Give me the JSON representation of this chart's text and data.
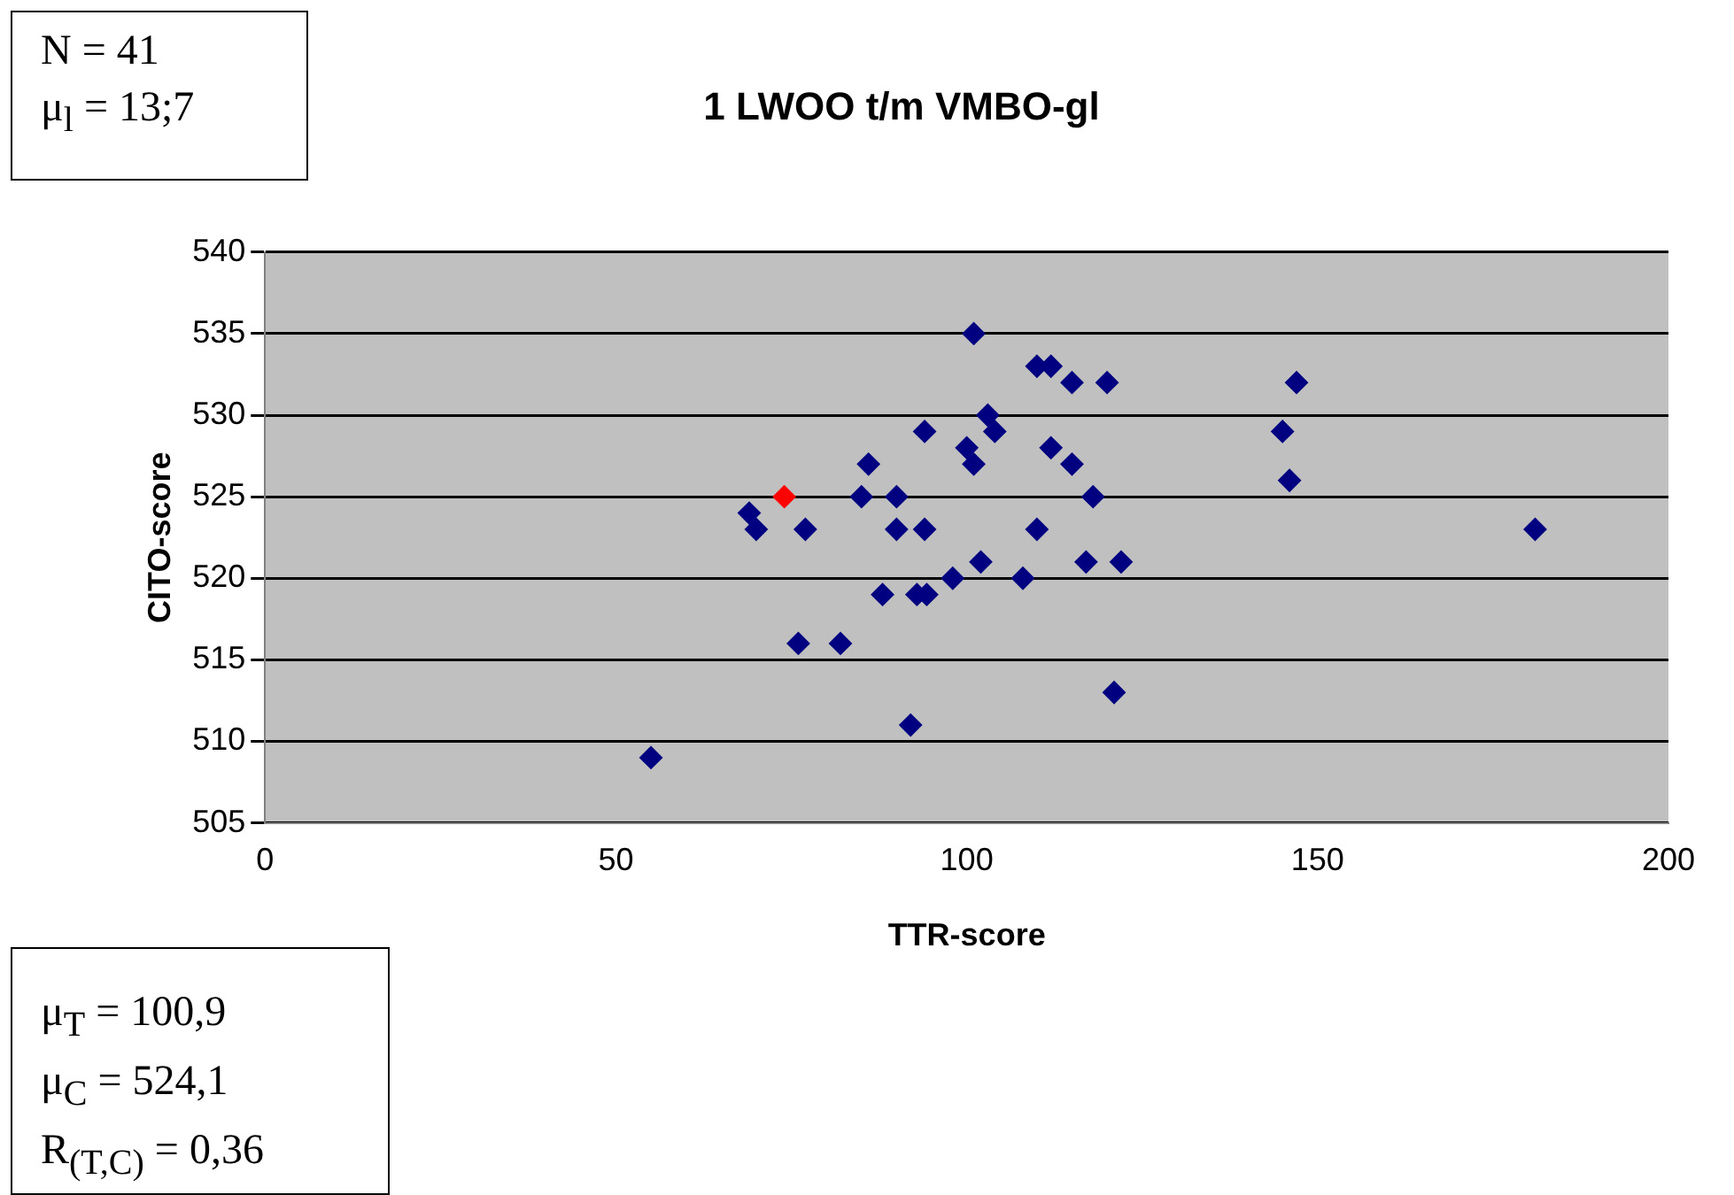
{
  "chart_data": {
    "type": "scatter",
    "title": "1 LWOO t/m VMBO-gl",
    "xlabel": "TTR-score",
    "ylabel": "CITO-score",
    "xlim": [
      0,
      200
    ],
    "xticks": [
      0,
      50,
      100,
      150,
      200
    ],
    "ylim": [
      505,
      540
    ],
    "yticks": [
      505,
      510,
      515,
      520,
      525,
      530,
      535,
      540
    ],
    "grid": "y",
    "legend": false,
    "marker": "diamond",
    "annotations": [
      "N = 41",
      "μ$_{l}$ = 13;7",
      "μ$_{T}$ = 100,9",
      "μ$_{C}$ = 524,1",
      "R$_{(T,C)}$ = 0,36"
    ],
    "series": [
      {
        "color": "#000080",
        "x": [
          55,
          69,
          70,
          77,
          76,
          82,
          85,
          86,
          88,
          90,
          90,
          92,
          92.9,
          94.3,
          94,
          94,
          98,
          100,
          101,
          101,
          102,
          103,
          104,
          108,
          110,
          112,
          110,
          112,
          115,
          115,
          117,
          118,
          120,
          121,
          122,
          147,
          145,
          146,
          181
        ],
        "values": [
          509,
          524,
          523,
          523,
          516,
          516,
          525,
          527,
          519,
          525,
          523,
          511,
          519,
          519,
          523,
          529,
          520,
          528,
          527,
          535,
          521,
          530,
          529,
          520,
          533,
          533,
          523,
          528,
          532,
          527,
          521,
          525,
          532,
          513,
          521,
          532,
          529,
          526,
          523
        ]
      },
      {
        "color": "#ff0000",
        "x": [
          74
        ],
        "values": [
          525
        ]
      }
    ]
  }
}
